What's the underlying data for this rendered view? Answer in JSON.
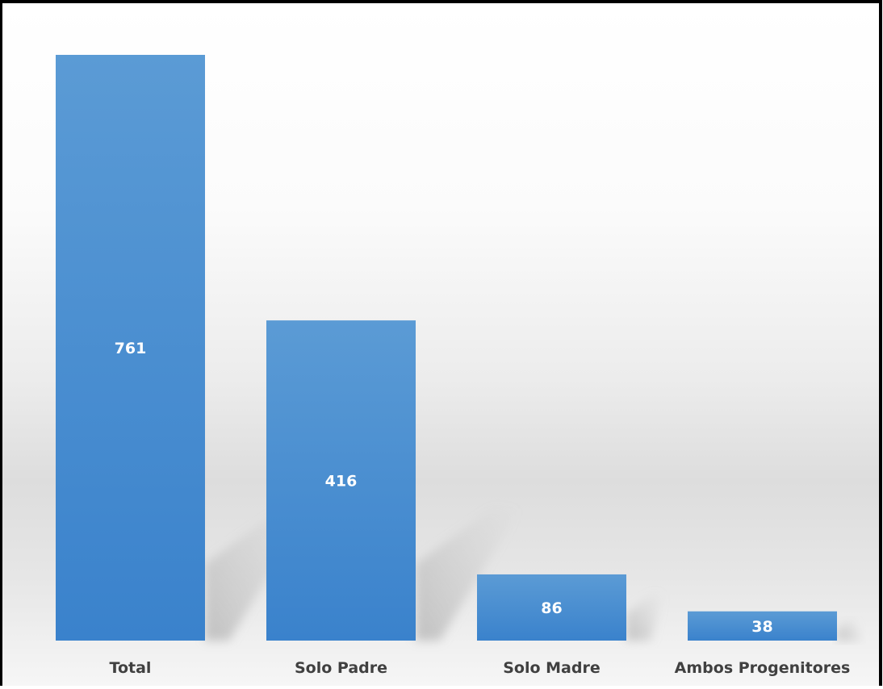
{
  "chart_data": {
    "type": "bar",
    "categories": [
      "Total",
      "Solo Padre",
      "Solo Madre",
      "Ambos Progenitores"
    ],
    "values": [
      761,
      416,
      86,
      38
    ],
    "data_labels": [
      "761",
      "416",
      "86",
      "38"
    ],
    "title": "",
    "xlabel": "",
    "ylabel": "",
    "ylim": [
      0,
      761
    ],
    "grid": false,
    "legend": "none",
    "colors": {
      "bar_top": "#5b9bd5",
      "bar_bottom": "#3a82cc",
      "label_text": "#ffffff",
      "category_text": "#404040"
    }
  }
}
